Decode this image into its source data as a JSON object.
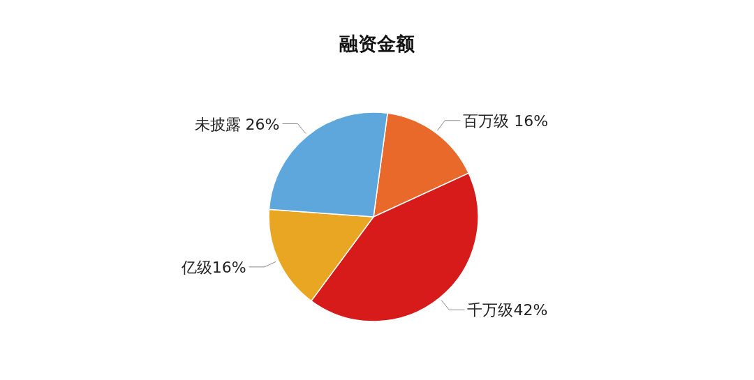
{
  "chart_data": {
    "type": "pie",
    "title": "融资金额",
    "categories": [
      "百万级 16%",
      "千万级42%",
      "亿级16%",
      "未披露 26%"
    ],
    "values": [
      16,
      42,
      16,
      26
    ],
    "colors": [
      "#e8692a",
      "#d71a1a",
      "#e8a623",
      "#5ea7dc"
    ]
  }
}
